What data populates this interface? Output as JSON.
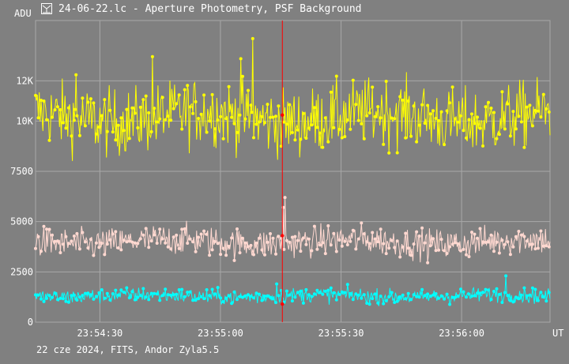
{
  "window": {
    "title": "24-06-22.lc - Aperture Photometry, PSF Background",
    "footer": "22 cze 2024, FITS, Andor Zyla5.5"
  },
  "colors": {
    "background": "#808080",
    "grid": "#a8a8a8",
    "cursor": "#ff0000",
    "series_a": "#ffff00",
    "series_b": "#ffd8d0",
    "series_c": "#00ffff"
  },
  "chart_data": {
    "type": "line",
    "title": "",
    "xlabel": "UT",
    "ylabel": "ADU",
    "x_ticks": [
      "23:54:30",
      "23:55:00",
      "23:55:30",
      "23:56:00"
    ],
    "x_tick_seconds": [
      30,
      60,
      90,
      120
    ],
    "xlim_seconds": [
      14,
      142
    ],
    "y_ticks": [
      "0",
      "2500",
      "5000",
      "7500",
      "10K",
      "12K"
    ],
    "y_tick_values": [
      0,
      2500,
      5000,
      7500,
      10000,
      12000
    ],
    "ylim": [
      0,
      15000
    ],
    "grid": true,
    "cursor_x_seconds": 75.4,
    "series": [
      {
        "color": "#ffff00",
        "mean": 10200,
        "spread": 1100,
        "spikes": [
          [
            68,
            14100
          ],
          [
            65,
            13100
          ],
          [
            24,
            12300
          ],
          [
            43,
            13200
          ]
        ]
      },
      {
        "color": "#ffd8d0",
        "mean": 4000,
        "spread": 500,
        "spikes": [
          [
            76,
            6200
          ],
          [
            75.6,
            5700
          ]
        ]
      },
      {
        "color": "#00ffff",
        "mean": 1300,
        "spread": 250,
        "spikes": [
          [
            131,
            2300
          ],
          [
            74,
            1900
          ]
        ]
      }
    ],
    "samples_per_series": 560,
    "cursor_values": [
      10300,
      4300,
      900
    ]
  }
}
